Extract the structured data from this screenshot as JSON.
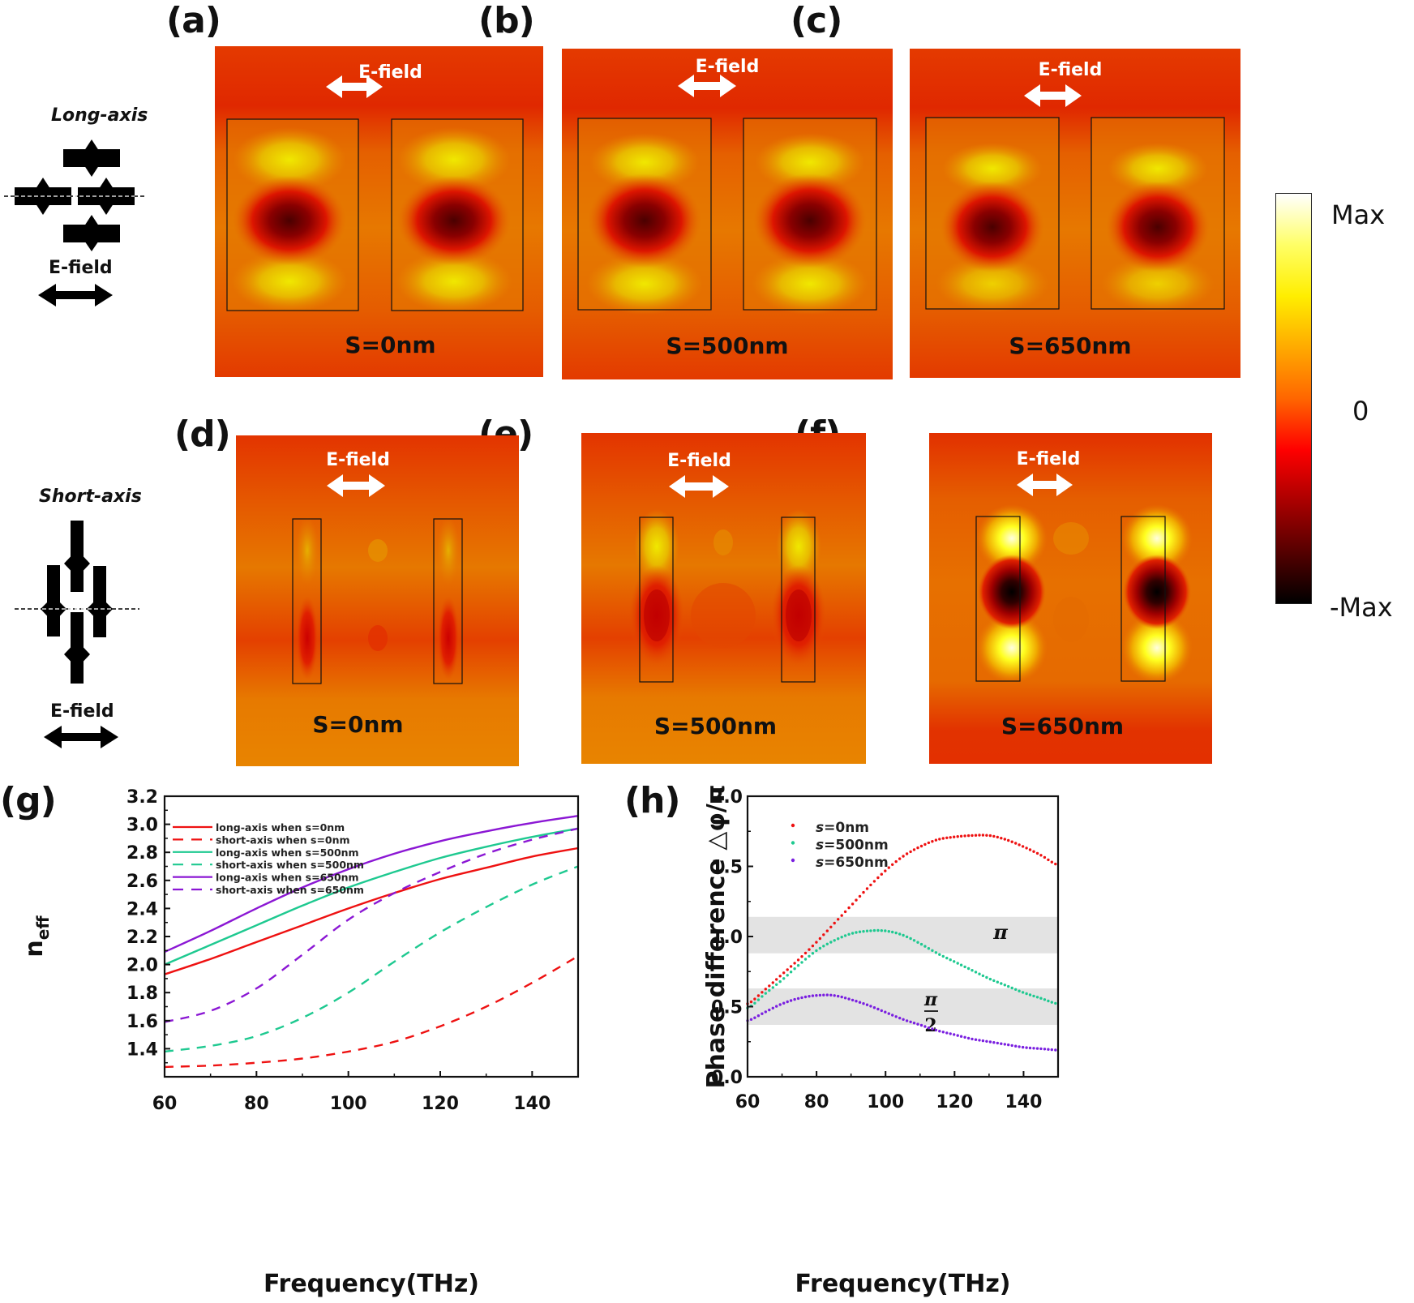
{
  "panels": {
    "a": {
      "label": "(a)",
      "efield": "E-field",
      "caption": "S=0nm"
    },
    "b": {
      "label": "(b)",
      "efield": "E-field",
      "caption": "S=500nm"
    },
    "c": {
      "label": "(c)",
      "efield": "E-field",
      "caption": "S=650nm"
    },
    "d": {
      "label": "(d)",
      "efield": "E-field",
      "caption": "S=0nm"
    },
    "e": {
      "label": "(e)",
      "efield": "E-field",
      "caption": "S=500nm"
    },
    "f": {
      "label": "(f)",
      "efield": "E-field",
      "caption": "S=650nm"
    },
    "g": {
      "label": "(g)"
    },
    "h": {
      "label": "(h)"
    }
  },
  "schematics": {
    "long": {
      "title": "Long-axis",
      "efield": "E-field"
    },
    "short": {
      "title": "Short-axis",
      "efield": "E-field"
    }
  },
  "colorbar": {
    "max_label": "Max",
    "zero_label": "0",
    "min_label": "-Max",
    "stops": [
      "#ffffff",
      "#ffff66",
      "#ffee00",
      "#ffaa00",
      "#ff6600",
      "#ff0000",
      "#aa0000",
      "#550000",
      "#000000"
    ]
  },
  "chart_data": [
    {
      "id": "g",
      "type": "line",
      "title": "",
      "xlabel": "Frequency(THz)",
      "ylabel": "n_eff",
      "ylabel_main": "n",
      "ylabel_sub": "eff",
      "xlim": [
        60,
        150
      ],
      "ylim": [
        1.2,
        3.2
      ],
      "xticks": [
        60,
        80,
        100,
        120,
        140
      ],
      "xtick_labels": [
        "60",
        "80",
        "100",
        "120",
        "140"
      ],
      "yticks": [
        1.4,
        1.6,
        1.8,
        2.0,
        2.2,
        2.4,
        2.6,
        2.8,
        3.0,
        3.2
      ],
      "ytick_labels": [
        "1.4",
        "1.6",
        "1.8",
        "2.0",
        "2.2",
        "2.4",
        "2.6",
        "2.8",
        "3.0",
        "3.2"
      ],
      "grid": false,
      "legend_position": "top-left",
      "x": [
        60,
        70,
        80,
        90,
        100,
        110,
        120,
        130,
        140,
        150
      ],
      "series": [
        {
          "name": "long-axis when s=0nm",
          "color": "#ee1111",
          "dash": false,
          "values": [
            1.93,
            2.04,
            2.16,
            2.28,
            2.4,
            2.51,
            2.61,
            2.69,
            2.77,
            2.83
          ]
        },
        {
          "name": "short-axis when s=0nm",
          "color": "#ee1111",
          "dash": true,
          "values": [
            1.27,
            1.28,
            1.3,
            1.33,
            1.38,
            1.45,
            1.56,
            1.7,
            1.87,
            2.06
          ]
        },
        {
          "name": "long-axis when s=500nm",
          "color": "#1ec990",
          "dash": false,
          "values": [
            2.0,
            2.14,
            2.28,
            2.42,
            2.55,
            2.66,
            2.76,
            2.84,
            2.91,
            2.97
          ]
        },
        {
          "name": "short-axis when s=500nm",
          "color": "#1ec990",
          "dash": true,
          "values": [
            1.38,
            1.42,
            1.49,
            1.62,
            1.8,
            2.02,
            2.23,
            2.41,
            2.57,
            2.7
          ]
        },
        {
          "name": "long-axis when s=650nm",
          "color": "#8b17d4",
          "dash": false,
          "values": [
            2.09,
            2.24,
            2.4,
            2.55,
            2.68,
            2.79,
            2.88,
            2.95,
            3.01,
            3.06
          ]
        },
        {
          "name": "short-axis when s=650nm",
          "color": "#8b17d4",
          "dash": true,
          "values": [
            1.59,
            1.67,
            1.83,
            2.07,
            2.32,
            2.51,
            2.66,
            2.79,
            2.89,
            2.97
          ]
        }
      ]
    },
    {
      "id": "h",
      "type": "scatter",
      "title": "",
      "xlabel": "Frequency(THz)",
      "ylabel": "Phase difference △φ/π",
      "xlim": [
        60,
        150
      ],
      "ylim": [
        0.0,
        2.0
      ],
      "xticks": [
        60,
        80,
        100,
        120,
        140
      ],
      "xtick_labels": [
        "60",
        "80",
        "100",
        "120",
        "140"
      ],
      "yticks": [
        0.0,
        0.5,
        1.0,
        1.5,
        2.0
      ],
      "ytick_labels": [
        "0.0",
        "0.5",
        "1.0",
        "1.5",
        "2.0"
      ],
      "grid": false,
      "legend_position": "top-left",
      "bands": [
        {
          "label": "π",
          "from": 0.88,
          "to": 1.14,
          "color": "#e3e3e3"
        },
        {
          "label": "π/2",
          "label_num": "π",
          "label_den": "2",
          "from": 0.37,
          "to": 0.63,
          "color": "#e3e3e3"
        }
      ],
      "x": [
        60,
        65,
        70,
        75,
        80,
        85,
        90,
        95,
        100,
        105,
        110,
        115,
        120,
        125,
        130,
        135,
        140,
        145,
        150
      ],
      "series": [
        {
          "name": "s=0nm",
          "prefix": "s",
          "suffix": "=0nm",
          "color": "#ee1111",
          "values": [
            0.52,
            0.62,
            0.73,
            0.84,
            0.96,
            1.09,
            1.22,
            1.35,
            1.47,
            1.57,
            1.64,
            1.69,
            1.71,
            1.72,
            1.72,
            1.69,
            1.64,
            1.58,
            1.51
          ]
        },
        {
          "name": "s=500nm",
          "prefix": "s",
          "suffix": "=500nm",
          "color": "#1ec990",
          "values": [
            0.49,
            0.59,
            0.69,
            0.8,
            0.9,
            0.97,
            1.02,
            1.04,
            1.04,
            1.01,
            0.95,
            0.88,
            0.82,
            0.76,
            0.7,
            0.65,
            0.6,
            0.56,
            0.52
          ]
        },
        {
          "name": "s=650nm",
          "prefix": "s",
          "suffix": "=650nm",
          "color": "#7a1fe0",
          "values": [
            0.4,
            0.46,
            0.52,
            0.56,
            0.58,
            0.58,
            0.55,
            0.51,
            0.46,
            0.41,
            0.37,
            0.33,
            0.3,
            0.27,
            0.25,
            0.23,
            0.21,
            0.2,
            0.19
          ]
        }
      ]
    }
  ]
}
